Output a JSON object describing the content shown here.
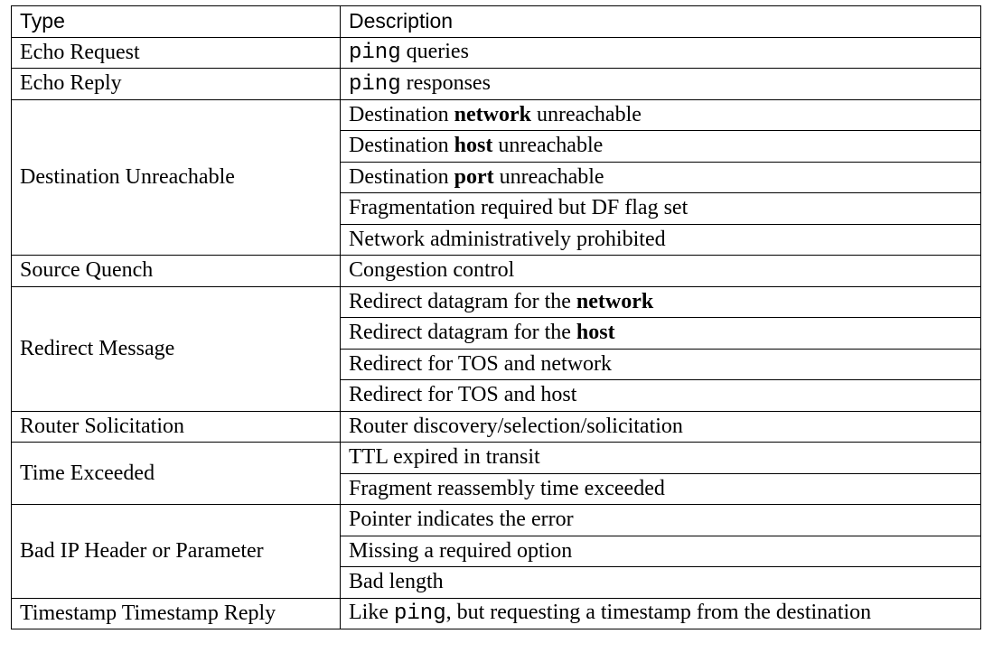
{
  "table": {
    "header": {
      "type": "Type",
      "description": "Description"
    },
    "groups": [
      {
        "type": "Echo Request",
        "rows": [
          {
            "code": "ping",
            "after": " queries"
          }
        ]
      },
      {
        "type": "Echo Reply",
        "rows": [
          {
            "code": "ping",
            "after": " responses"
          }
        ]
      },
      {
        "type": "Destination Unreachable",
        "rows": [
          {
            "before": "Destination ",
            "bold": "network",
            "after": " unreachable"
          },
          {
            "before": "Destination ",
            "bold": "host",
            "after": " unreachable"
          },
          {
            "before": "Destination ",
            "bold": "port",
            "after": " unreachable"
          },
          {
            "before": "Fragmentation required but DF flag set"
          },
          {
            "before": "Network administratively prohibited"
          }
        ]
      },
      {
        "type": "Source Quench",
        "rows": [
          {
            "before": "Congestion control"
          }
        ]
      },
      {
        "type": "Redirect Message",
        "rows": [
          {
            "before": "Redirect datagram for the ",
            "bold": "network"
          },
          {
            "before": "Redirect datagram for the ",
            "bold": "host"
          },
          {
            "before": "Redirect for TOS and network"
          },
          {
            "before": "Redirect for TOS and host"
          }
        ]
      },
      {
        "type": "Router Solicitation",
        "rows": [
          {
            "before": "Router discovery/selection/solicitation"
          }
        ]
      },
      {
        "type": "Time Exceeded",
        "rows": [
          {
            "before": "TTL expired in transit"
          },
          {
            "before": "Fragment reassembly time exceeded"
          }
        ]
      },
      {
        "type": "Bad IP Header or Parameter",
        "rows": [
          {
            "before": "Pointer indicates the error"
          },
          {
            "before": "Missing a required option"
          },
          {
            "before": "Bad length"
          }
        ]
      },
      {
        "type": "Timestamp Timestamp Reply",
        "rows": [
          {
            "before": "Like ",
            "code": "ping",
            "after": ", but requesting a timestamp from the destination"
          }
        ]
      }
    ]
  }
}
